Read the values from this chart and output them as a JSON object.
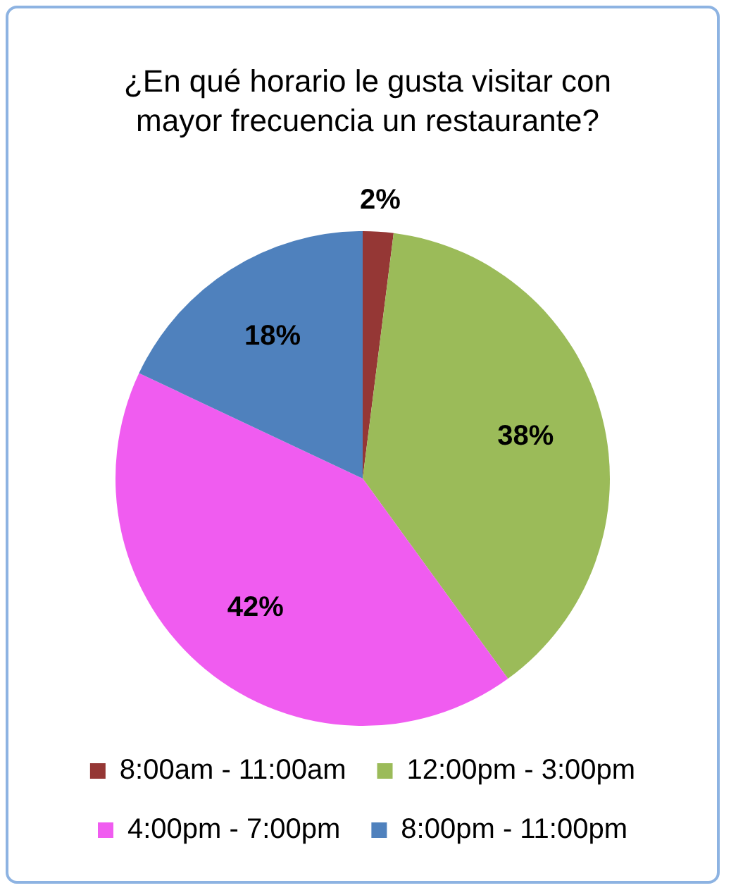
{
  "chart_data": {
    "type": "pie",
    "title": "¿En qué horario le gusta visitar con mayor frecuencia un restaurante?",
    "categories": [
      "8:00am - 11:00am",
      "12:00pm - 3:00pm",
      "4:00pm - 7:00pm",
      "8:00pm - 11:00pm"
    ],
    "values": [
      2,
      38,
      42,
      18
    ],
    "value_labels": [
      "2%",
      "38%",
      "42%",
      "18%"
    ],
    "colors": [
      "#953735",
      "#9bbb59",
      "#f05cf0",
      "#4f81bd"
    ],
    "legend": "bottom"
  }
}
